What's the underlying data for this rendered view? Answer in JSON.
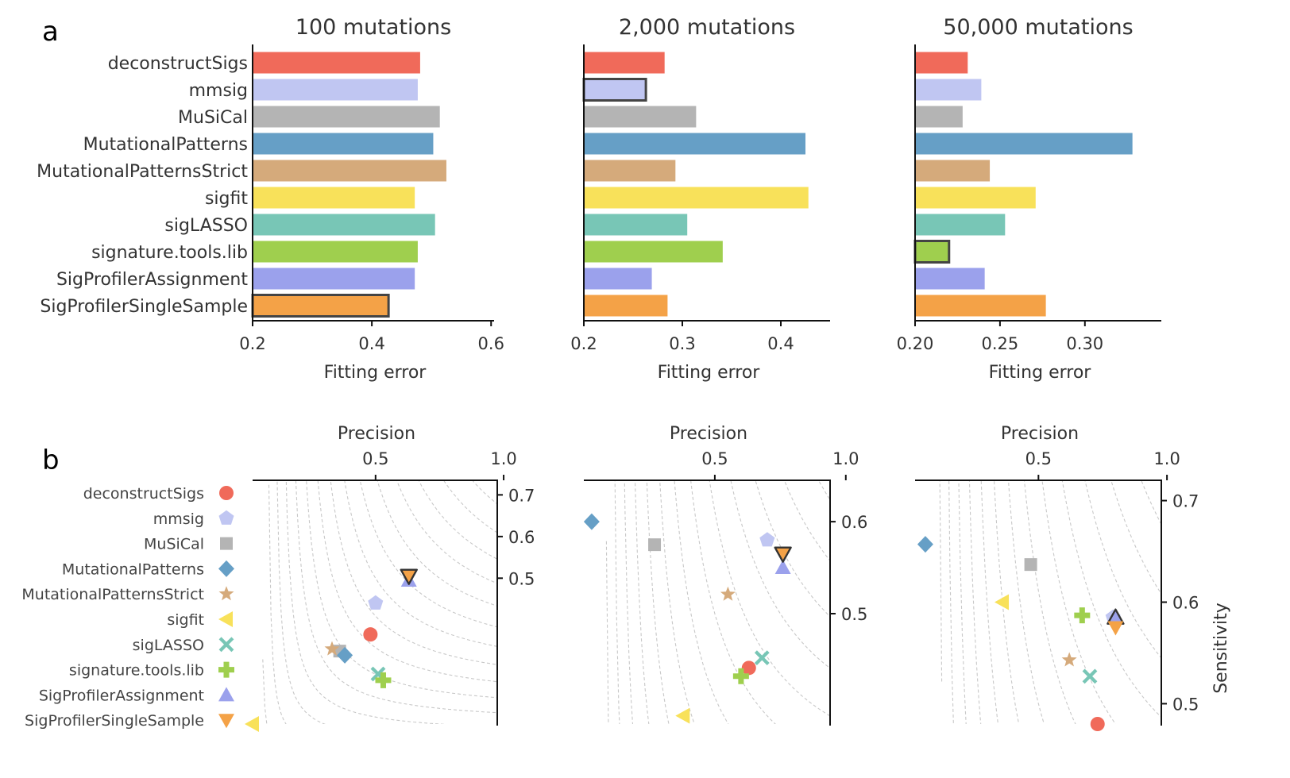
{
  "panel_labels": [
    "a",
    "b"
  ],
  "tools": [
    "deconstructSigs",
    "mmsig",
    "MuSiCal",
    "MutationalPatterns",
    "MutationalPatternsStrict",
    "sigfit",
    "sigLASSO",
    "signature.tools.lib",
    "SigProfilerAssignment",
    "SigProfilerSingleSample"
  ],
  "colors": [
    "#f06a5a",
    "#c0c6f2",
    "#b4b4b4",
    "#669fc6",
    "#d5aa7b",
    "#f8e15a",
    "#78c6b6",
    "#9fcf4e",
    "#9ba1ec",
    "#f4a247"
  ],
  "markers": [
    "circle",
    "pentagon",
    "square",
    "diamond",
    "star",
    "triangle-left",
    "x",
    "plus",
    "triangle-up",
    "triangle-down"
  ],
  "chart_data": [
    {
      "type": "bar",
      "orientation": "horizontal",
      "title": "100 mutations",
      "xlabel": "Fitting error",
      "categories": [
        "deconstructSigs",
        "mmsig",
        "MuSiCal",
        "MutationalPatterns",
        "MutationalPatternsStrict",
        "sigfit",
        "sigLASSO",
        "signature.tools.lib",
        "SigProfilerAssignment",
        "SigProfilerSingleSample"
      ],
      "values": [
        0.481,
        0.477,
        0.514,
        0.503,
        0.525,
        0.472,
        0.506,
        0.477,
        0.472,
        0.428
      ],
      "highlighted": "SigProfilerSingleSample",
      "xlim": [
        0.2,
        0.605
      ],
      "xticks": [
        "0.2",
        "0.4",
        "0.6"
      ],
      "xtick_values": [
        0.2,
        0.4,
        0.6
      ]
    },
    {
      "type": "bar",
      "orientation": "horizontal",
      "title": "2,000 mutations",
      "xlabel": "Fitting error",
      "categories": [
        "deconstructSigs",
        "mmsig",
        "MuSiCal",
        "MutationalPatterns",
        "MutationalPatternsStrict",
        "sigfit",
        "sigLASSO",
        "signature.tools.lib",
        "SigProfilerAssignment",
        "SigProfilerSingleSample"
      ],
      "values": [
        0.282,
        0.263,
        0.314,
        0.425,
        0.293,
        0.428,
        0.305,
        0.341,
        0.269,
        0.285
      ],
      "highlighted": "mmsig",
      "xlim": [
        0.2,
        0.45
      ],
      "xticks": [
        "0.2",
        "0.3",
        "0.4"
      ],
      "xtick_values": [
        0.2,
        0.3,
        0.4
      ]
    },
    {
      "type": "bar",
      "orientation": "horizontal",
      "title": "50,000 mutations",
      "xlabel": "Fitting error",
      "categories": [
        "deconstructSigs",
        "mmsig",
        "MuSiCal",
        "MutationalPatterns",
        "MutationalPatternsStrict",
        "sigfit",
        "sigLASSO",
        "signature.tools.lib",
        "SigProfilerAssignment",
        "SigProfilerSingleSample"
      ],
      "values": [
        0.231,
        0.239,
        0.228,
        0.328,
        0.244,
        0.271,
        0.253,
        0.22,
        0.241,
        0.277
      ],
      "highlighted": "signature.tools.lib",
      "xlim": [
        0.2,
        0.345
      ],
      "xticks": [
        "0.20",
        "0.25",
        "0.30"
      ],
      "xtick_values": [
        0.2,
        0.25,
        0.3
      ]
    },
    {
      "type": "scatter",
      "xlabel": "Precision",
      "ylabel": "",
      "xlim": [
        0.02,
        0.975
      ],
      "ylim": [
        0.15,
        0.735
      ],
      "xticks": [
        "0.5",
        "1.0"
      ],
      "xtick_values": [
        0.5,
        1.0
      ],
      "yticks": [
        "0.7",
        "0.6",
        "0.5"
      ],
      "ytick_values": [
        0.7,
        0.6,
        0.5
      ],
      "x": [
        0.48,
        0.5,
        0.36,
        0.38,
        0.33,
        0.02,
        0.51,
        0.53,
        0.63,
        0.63
      ],
      "y": [
        0.365,
        0.44,
        0.325,
        0.315,
        0.33,
        0.15,
        0.27,
        0.255,
        0.495,
        0.505
      ],
      "highlighted": "SigProfilerSingleSample"
    },
    {
      "type": "scatter",
      "xlabel": "Precision",
      "ylabel": "",
      "xlim": [
        0.0,
        0.94
      ],
      "ylim": [
        0.38,
        0.645
      ],
      "xticks": [
        "0.5",
        "1.0"
      ],
      "xtick_values": [
        0.5,
        1.0
      ],
      "yticks": [
        "0.6",
        "0.5"
      ],
      "ytick_values": [
        0.6,
        0.5
      ],
      "x": [
        0.63,
        0.7,
        0.27,
        0.03,
        0.55,
        0.38,
        0.68,
        0.6,
        0.76,
        0.76
      ],
      "y": [
        0.441,
        0.58,
        0.575,
        0.6,
        0.521,
        0.389,
        0.452,
        0.432,
        0.55,
        0.565
      ],
      "highlighted": "SigProfilerSingleSample"
    },
    {
      "type": "scatter",
      "xlabel": "Precision",
      "ylabel": "Sensitivity",
      "xlim": [
        0.02,
        0.978
      ],
      "ylim": [
        0.48,
        0.72
      ],
      "xticks": [
        "0.5",
        "1.0"
      ],
      "xtick_values": [
        0.5,
        1.0
      ],
      "yticks": [
        "0.7",
        "0.6",
        "0.5"
      ],
      "ytick_values": [
        0.7,
        0.6,
        0.5
      ],
      "x": [
        0.73,
        0.79,
        0.47,
        0.06,
        0.62,
        0.36,
        0.7,
        0.67,
        0.8,
        0.8
      ],
      "y": [
        0.472,
        0.585,
        0.637,
        0.657,
        0.543,
        0.6,
        0.527,
        0.587,
        0.585,
        0.575
      ],
      "highlighted": "SigProfilerAssignment"
    }
  ]
}
